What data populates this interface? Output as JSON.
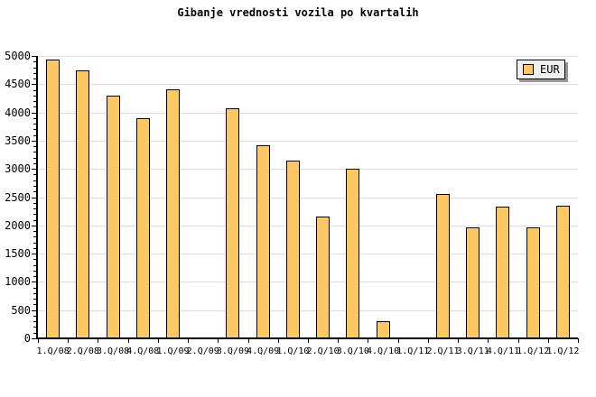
{
  "chart_data": {
    "type": "bar",
    "title": "Gibanje vrednosti vozila po kvartalih",
    "categories": [
      "1.Q/08",
      "2.Q/08",
      "3.Q/08",
      "4.Q/08",
      "1.Q/09",
      "2.Q/09",
      "3.Q/09",
      "4.Q/09",
      "1.Q/10",
      "2.Q/10",
      "3.Q/10",
      "4.Q/10",
      "1.Q/11",
      "2.Q/11",
      "3.Q/11",
      "4.Q/11",
      "1.Q/12",
      "1.Q/12"
    ],
    "series": [
      {
        "name": "EUR",
        "values": [
          4940,
          4750,
          4290,
          3890,
          4410,
          0,
          4070,
          3420,
          3150,
          2160,
          3010,
          310,
          0,
          2560,
          1960,
          2340,
          1960,
          2350
        ]
      }
    ],
    "xlabel": "",
    "ylabel": "",
    "ylim": [
      0,
      5000
    ],
    "ytick_step": 500,
    "y_minor_tick_step": 100,
    "grid": "horizontal-major",
    "legend": {
      "label": "EUR",
      "position": "top-right"
    },
    "colors": {
      "bar_fill": "#FCC863",
      "bar_border": "#000000",
      "gridline": "#DCDCDC",
      "axis": "#000000",
      "text": "#000000",
      "background": "#FFFFFF",
      "legend_bg": "#EFEFEF",
      "legend_shadow": "#999999"
    }
  }
}
